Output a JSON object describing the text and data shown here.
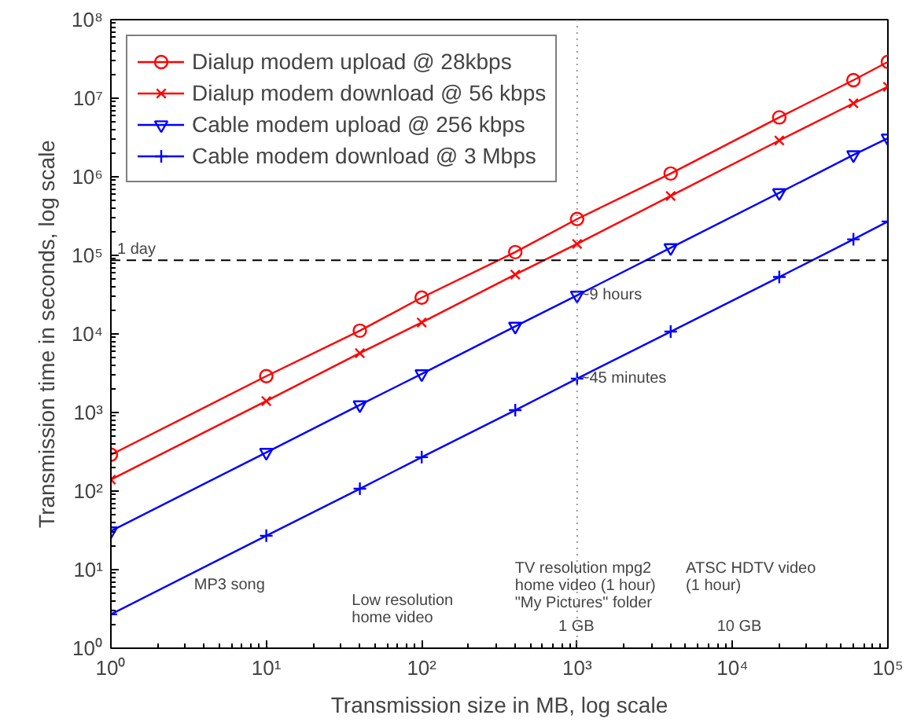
{
  "chart_data": {
    "type": "line",
    "xlabel": "Transmission size in MB, log scale",
    "ylabel": "Transmission time in seconds, log scale",
    "log": "xy",
    "grid": false,
    "legend": "top left",
    "x": [
      1,
      10,
      40,
      100,
      400,
      1000,
      4000,
      20000,
      60000,
      100000
    ],
    "xlim": [
      1,
      100000
    ],
    "ylim": [
      1,
      100000000
    ],
    "xticks": [
      {
        "value": 1,
        "label": "10⁰"
      },
      {
        "value": 10,
        "label": "10¹"
      },
      {
        "value": 100,
        "label": "10²"
      },
      {
        "value": 1000,
        "label": "10³"
      },
      {
        "value": 10000,
        "label": "10⁴"
      },
      {
        "value": 100000,
        "label": "10⁵"
      }
    ],
    "yticks": [
      {
        "value": 1,
        "label": "10⁰"
      },
      {
        "value": 10,
        "label": "10¹"
      },
      {
        "value": 100,
        "label": "10²"
      },
      {
        "value": 1000,
        "label": "10³"
      },
      {
        "value": 10000,
        "label": "10⁴"
      },
      {
        "value": 100000,
        "label": "10⁵"
      },
      {
        "value": 1000000,
        "label": "10⁶"
      },
      {
        "value": 10000000,
        "label": "10⁷"
      },
      {
        "value": 100000000,
        "label": "10⁸"
      }
    ],
    "series": [
      {
        "name": "Dialup modem upload @ 28kbps",
        "color": "#ff0000",
        "marker": "circle",
        "values": [
          290,
          2900,
          11000,
          29000,
          110000,
          290000,
          1100000,
          5700000,
          17000000,
          29000000
        ]
      },
      {
        "name": "Dialup modem download @ 56 kbps",
        "color": "#ff0000",
        "marker": "x",
        "values": [
          140,
          1400,
          5700,
          14000,
          57000,
          140000,
          570000,
          2900000,
          8600000,
          14000000
        ]
      },
      {
        "name": "Cable modem upload @ 256 kbps",
        "color": "#0000ff",
        "marker": "triangle",
        "values": [
          31,
          310,
          1250,
          3100,
          12500,
          31000,
          125000,
          625000,
          1900000,
          3100000
        ]
      },
      {
        "name": "Cable modem download @ 3 Mbps",
        "color": "#0000ff",
        "marker": "cross",
        "values": [
          2.7,
          27,
          107,
          270,
          1070,
          2700,
          10700,
          53000,
          160000,
          270000
        ]
      }
    ],
    "ref_lines": [
      {
        "axis": "y",
        "value": 86400,
        "label": "1 day",
        "color": "#000000",
        "line_style": "dashed"
      },
      {
        "axis": "x",
        "value": 1000,
        "label": null,
        "color": "#999999",
        "line_style": "dotted"
      }
    ],
    "annotations": [
      {
        "text": "~9 hours",
        "x": 1000,
        "y": 31000
      },
      {
        "text": "~45 minutes",
        "x": 1000,
        "y": 2700
      },
      "MP3 song",
      "Low resolution\nhome video",
      "TV resolution mpg2\nhome video (1 hour)\n\"My Pictures\" folder",
      "1 GB",
      "ATSC HDTV video\n(1 hour)",
      "10 GB"
    ]
  }
}
